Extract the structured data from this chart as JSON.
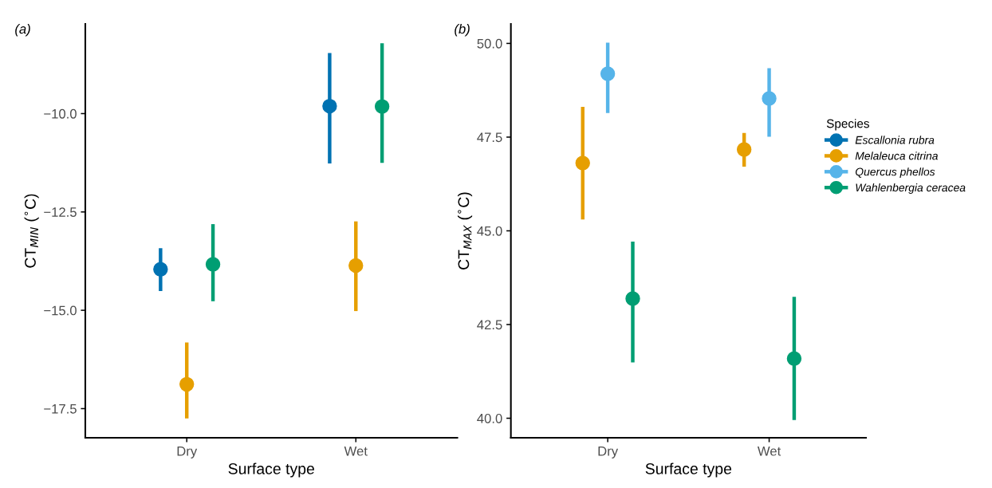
{
  "chart_data": [
    {
      "type": "scatter",
      "title": "(a)",
      "xlabel": "Surface type",
      "ylabel": "CT$_{MIN}$ ($^{∘}$C)",
      "categories": [
        "Dry",
        "Wet"
      ],
      "ylim": [
        -18.24,
        -7.72
      ],
      "yticks": [
        {
          "value": -10,
          "label": "−10.0"
        },
        {
          "value": -12.5,
          "label": "−12.5"
        },
        {
          "value": -15,
          "label": "−15.0"
        },
        {
          "value": -17.5,
          "label": "−17.5"
        }
      ],
      "grid": false,
      "legend": false,
      "marker": "circle",
      "series": [
        {
          "color": "#0072b2",
          "values": [
            -13.96,
            -9.81
          ],
          "errors": [
            [
              -14.51,
              -13.42
            ],
            [
              -11.27,
              -8.46
            ]
          ]
        },
        {
          "color": "#e69f00",
          "values": [
            -16.88,
            -13.86
          ],
          "errors": [
            [
              -17.75,
              -15.82
            ],
            [
              -15.02,
              -12.74
            ]
          ]
        },
        {
          "color": "#009e73",
          "values": [
            -13.83,
            -9.82
          ],
          "errors": [
            [
              -14.77,
              -12.81
            ],
            [
              -11.25,
              -8.21
            ]
          ]
        }
      ]
    },
    {
      "type": "scatter",
      "title": "(b)",
      "xlabel": "Surface type",
      "ylabel": "CT$_{MAX}$ ($^{∘}$C)",
      "legend_title": "Species",
      "categories": [
        "Dry",
        "Wet"
      ],
      "ylim": [
        39.48,
        50.52
      ],
      "yticks": [
        {
          "value": 50,
          "label": "50.0"
        },
        {
          "value": 47.5,
          "label": "47.5"
        },
        {
          "value": 45,
          "label": "45.0"
        },
        {
          "value": 42.5,
          "label": "42.5"
        },
        {
          "value": 40,
          "label": "40.0"
        }
      ],
      "grid": false,
      "legend": "right",
      "marker": "circle",
      "series": [
        {
          "name": "Escallonia rubra",
          "color": "#0072b2",
          "values": [
            null,
            null
          ]
        },
        {
          "name": "Melaleuca citrina",
          "color": "#e69f00",
          "values": [
            46.81,
            47.17
          ],
          "errors": [
            [
              45.3,
              48.31
            ],
            [
              46.71,
              47.61
            ]
          ]
        },
        {
          "name": "Quercus phellos",
          "color": "#56b4e9",
          "values": [
            49.19,
            48.53
          ],
          "errors": [
            [
              48.14,
              50.02
            ],
            [
              47.51,
              49.34
            ]
          ]
        },
        {
          "name": "Wahlenbergia ceracea",
          "color": "#009e73",
          "values": [
            43.19,
            41.59
          ],
          "errors": [
            [
              41.49,
              44.71
            ],
            [
              39.95,
              43.24
            ]
          ]
        }
      ]
    }
  ]
}
